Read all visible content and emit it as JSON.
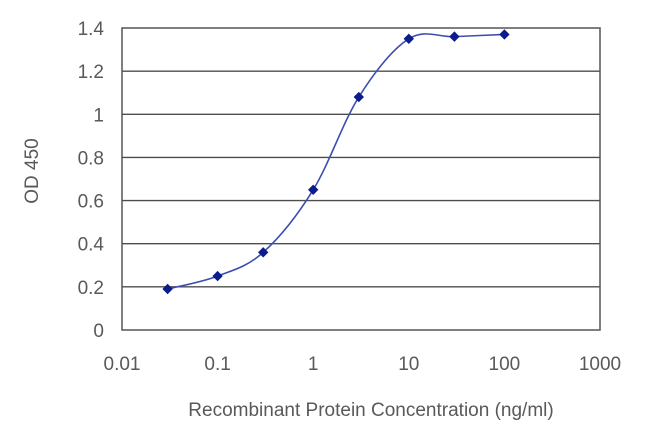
{
  "chart_data": {
    "type": "line",
    "title": "",
    "xlabel": "Recombinant Protein Concentration (ng/ml)",
    "ylabel": "OD 450",
    "xscale": "log",
    "xlim": [
      0.01,
      1000
    ],
    "ylim": [
      0,
      1.4
    ],
    "x_ticks": [
      "0.01",
      "0.1",
      "1",
      "10",
      "100",
      "1000"
    ],
    "y_ticks": [
      "0",
      "0.2",
      "0.4",
      "0.6",
      "0.8",
      "1",
      "1.2",
      "1.4"
    ],
    "grid": "horizontal",
    "legend": "none",
    "series": [
      {
        "x": [
          0.03,
          0.1,
          0.3,
          1,
          3,
          10,
          30,
          100
        ],
        "y": [
          0.19,
          0.25,
          0.36,
          0.65,
          1.08,
          1.35,
          1.36,
          1.37
        ]
      }
    ],
    "colors": {
      "line": "#3c4fb0",
      "marker": "#0c1c8c",
      "grid": "#4d4d4d",
      "frame": "#555555",
      "text": "#595959"
    }
  }
}
